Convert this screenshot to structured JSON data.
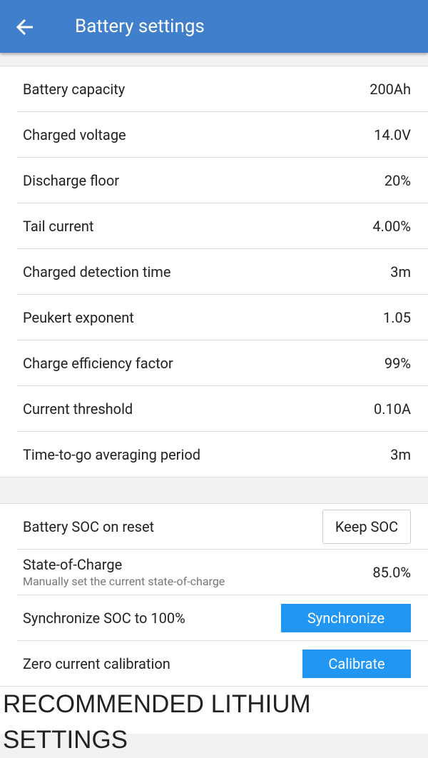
{
  "header": {
    "title": "Battery settings"
  },
  "settings": [
    {
      "label": "Battery capacity",
      "value": "200Ah"
    },
    {
      "label": "Charged voltage",
      "value": "14.0V"
    },
    {
      "label": "Discharge floor",
      "value": "20%"
    },
    {
      "label": "Tail current",
      "value": "4.00%"
    },
    {
      "label": "Charged detection time",
      "value": "3m"
    },
    {
      "label": "Peukert exponent",
      "value": "1.05"
    },
    {
      "label": "Charge efficiency factor",
      "value": "99%"
    },
    {
      "label": "Current threshold",
      "value": "0.10A"
    },
    {
      "label": "Time-to-go averaging period",
      "value": "3m"
    }
  ],
  "actions": {
    "soc_reset": {
      "label": "Battery SOC on reset",
      "button": "Keep SOC"
    },
    "state_of_charge": {
      "label": "State-of-Charge",
      "hint": "Manually set the current state-of-charge",
      "value": "85.0%"
    },
    "synchronize": {
      "label": "Synchronize SOC to 100%",
      "button": "Synchronize"
    },
    "calibrate": {
      "label": "Zero current calibration",
      "button": "Calibrate"
    }
  },
  "caption": "RECOMMENDED LITHIUM SETTINGS"
}
